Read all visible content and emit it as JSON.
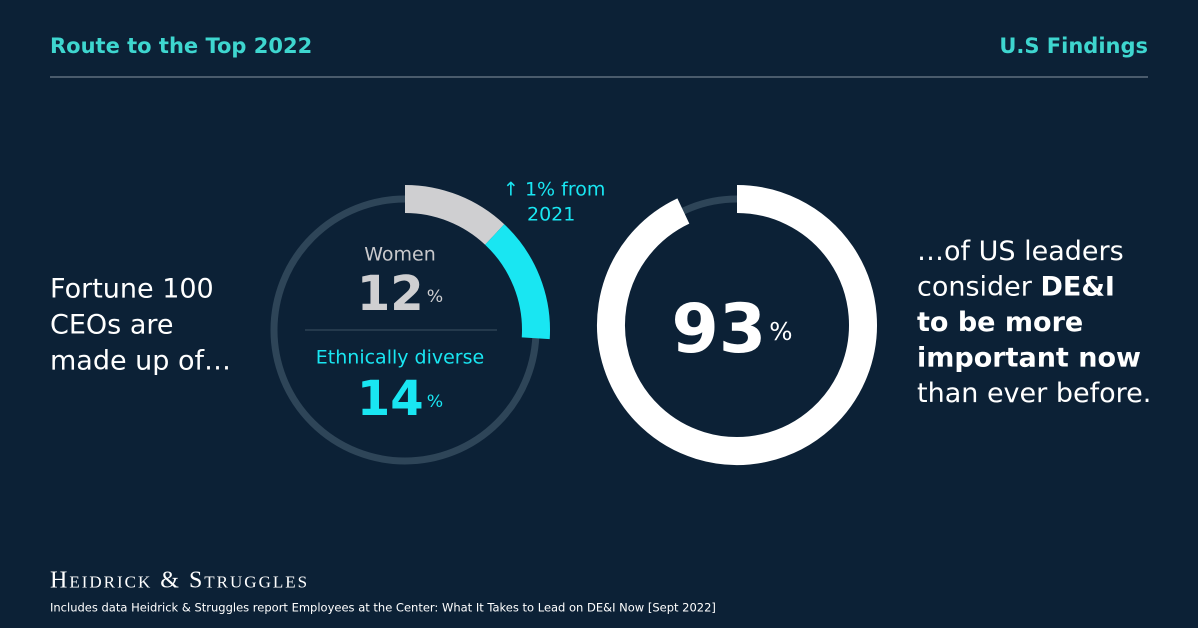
{
  "header": {
    "title": "Route to the Top 2022",
    "subtitle": "U.S Findings"
  },
  "left_text": [
    "Fortune 100",
    "CEOs are",
    "made up of…"
  ],
  "chart_data": [
    {
      "type": "donut",
      "unit": "%",
      "segments": [
        {
          "name": "Women",
          "value": 12,
          "color": "#cfcfd1"
        },
        {
          "name": "Ethnically diverse",
          "value": 14,
          "color": "#19e6f2"
        }
      ],
      "annotation": [
        "↑ 1% from",
        "2021"
      ],
      "annotation_color": "#19e6f2"
    },
    {
      "type": "donut",
      "unit": "%",
      "segments": [
        {
          "value": 93,
          "color": "#ffffff"
        }
      ]
    }
  ],
  "right_text": [
    [
      {
        "text": "…of US leaders"
      }
    ],
    [
      {
        "text": "consider "
      },
      {
        "text": "DE&I",
        "bold": true
      }
    ],
    [
      {
        "text": "to be more",
        "bold": true
      }
    ],
    [
      {
        "text": "important now",
        "bold": true
      }
    ],
    [
      {
        "text": "than ever before."
      }
    ]
  ],
  "footer": {
    "brand": "Heidrick & Struggles",
    "note": "Includes data Heidrick & Struggles report Employees at the Center: What It Takes to Lead on DE&I Now [Sept 2022]"
  }
}
